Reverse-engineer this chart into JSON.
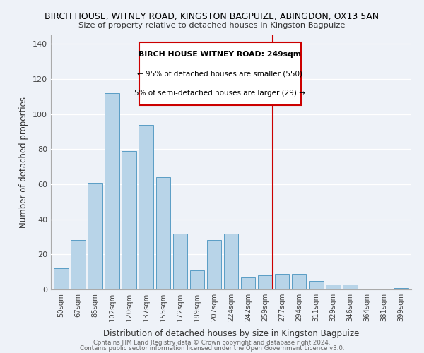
{
  "title": "BIRCH HOUSE, WITNEY ROAD, KINGSTON BAGPUIZE, ABINGDON, OX13 5AN",
  "subtitle": "Size of property relative to detached houses in Kingston Bagpuize",
  "xlabel": "Distribution of detached houses by size in Kingston Bagpuize",
  "ylabel": "Number of detached properties",
  "bar_labels": [
    "50sqm",
    "67sqm",
    "85sqm",
    "102sqm",
    "120sqm",
    "137sqm",
    "155sqm",
    "172sqm",
    "189sqm",
    "207sqm",
    "224sqm",
    "242sqm",
    "259sqm",
    "277sqm",
    "294sqm",
    "311sqm",
    "329sqm",
    "346sqm",
    "364sqm",
    "381sqm",
    "399sqm"
  ],
  "bar_values": [
    12,
    28,
    61,
    112,
    79,
    94,
    64,
    32,
    11,
    28,
    32,
    7,
    8,
    9,
    9,
    5,
    3,
    3,
    0,
    0,
    1
  ],
  "bar_color": "#b8d4e8",
  "bar_edge_color": "#5a9dc5",
  "ylim": [
    0,
    145
  ],
  "yticks": [
    0,
    20,
    40,
    60,
    80,
    100,
    120,
    140
  ],
  "vline_x": 12.47,
  "vline_color": "#cc0000",
  "annotation_title": "BIRCH HOUSE WITNEY ROAD: 249sqm",
  "annotation_line1": "← 95% of detached houses are smaller (550)",
  "annotation_line2": "5% of semi-detached houses are larger (29) →",
  "footer1": "Contains HM Land Registry data © Crown copyright and database right 2024.",
  "footer2": "Contains public sector information licensed under the Open Government Licence v3.0.",
  "background_color": "#eef2f8"
}
